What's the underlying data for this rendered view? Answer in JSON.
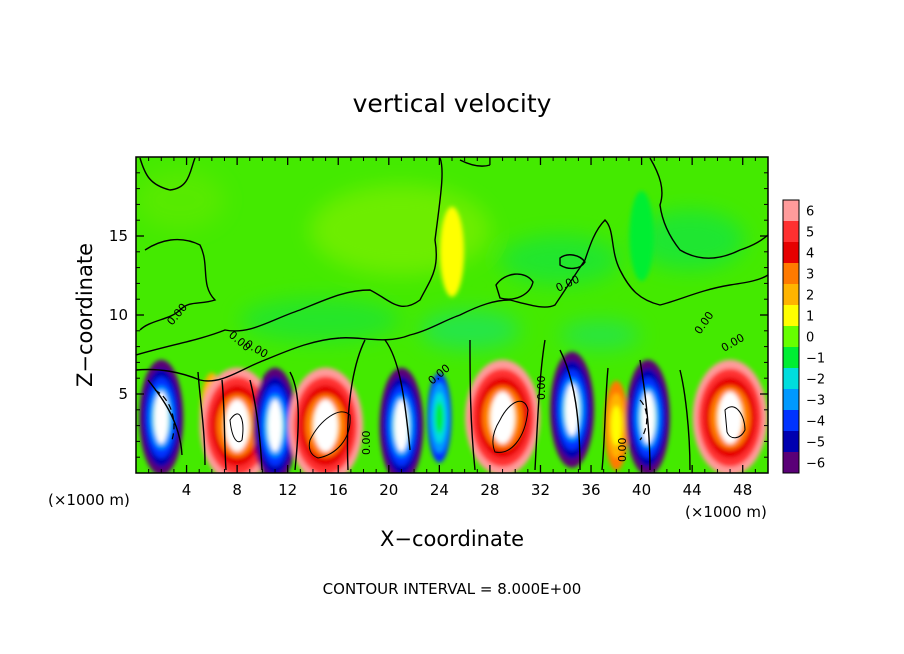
{
  "chart_data": {
    "type": "heatmap",
    "title": "vertical velocity",
    "xlabel": "X−coordinate",
    "ylabel": "Z−coordinate",
    "x_unit_label_left": "(×1000 m)",
    "x_unit_label_right": "(×1000 m)",
    "footer": "CONTOUR INTERVAL = 8.000E+00",
    "xlim": [
      0,
      50
    ],
    "ylim": [
      0,
      20
    ],
    "x_ticks": [
      4,
      8,
      12,
      16,
      20,
      24,
      28,
      32,
      36,
      40,
      44,
      48
    ],
    "y_ticks": [
      5,
      10,
      15
    ],
    "contour_labels": [
      "0.00",
      "0.00",
      "0.00",
      "0.00",
      "0.00",
      "0.00",
      "0.00",
      "0.00",
      "0.00",
      "0.00"
    ],
    "colorbar": {
      "levels": [
        6,
        5,
        4,
        3,
        2,
        1,
        0,
        -1,
        -2,
        -3,
        -4,
        -5,
        -6
      ],
      "level_labels": [
        "6",
        "5",
        "4",
        "3",
        "2",
        "1",
        "0",
        "−1",
        "−2",
        "−3",
        "−4",
        "−5",
        "−6"
      ],
      "colors": [
        "#ff9b9b",
        "#ff3030",
        "#e60000",
        "#ff7a00",
        "#ffb400",
        "#ffff00",
        "#66ff00",
        "#00ee33",
        "#00dddd",
        "#0099ff",
        "#0033ff",
        "#0000b0",
        "#5a0077"
      ]
    },
    "cells": [
      {
        "x": 2,
        "z": 3.5,
        "value": -6
      },
      {
        "x": 6,
        "z": 3.5,
        "value": 2
      },
      {
        "x": 8,
        "z": 3.0,
        "value": 6
      },
      {
        "x": 11,
        "z": 3.0,
        "value": -6
      },
      {
        "x": 15,
        "z": 3.0,
        "value": 6
      },
      {
        "x": 21,
        "z": 3.0,
        "value": -6
      },
      {
        "x": 24,
        "z": 3.5,
        "value": -4
      },
      {
        "x": 29,
        "z": 3.5,
        "value": 6
      },
      {
        "x": 34.5,
        "z": 4.0,
        "value": -6
      },
      {
        "x": 38,
        "z": 3.0,
        "value": 3
      },
      {
        "x": 40.5,
        "z": 3.5,
        "value": -6
      },
      {
        "x": 47,
        "z": 3.5,
        "value": 6
      },
      {
        "x": 25,
        "z": 14,
        "value": 0.5
      },
      {
        "x": 40,
        "z": 15,
        "value": -1
      }
    ]
  }
}
